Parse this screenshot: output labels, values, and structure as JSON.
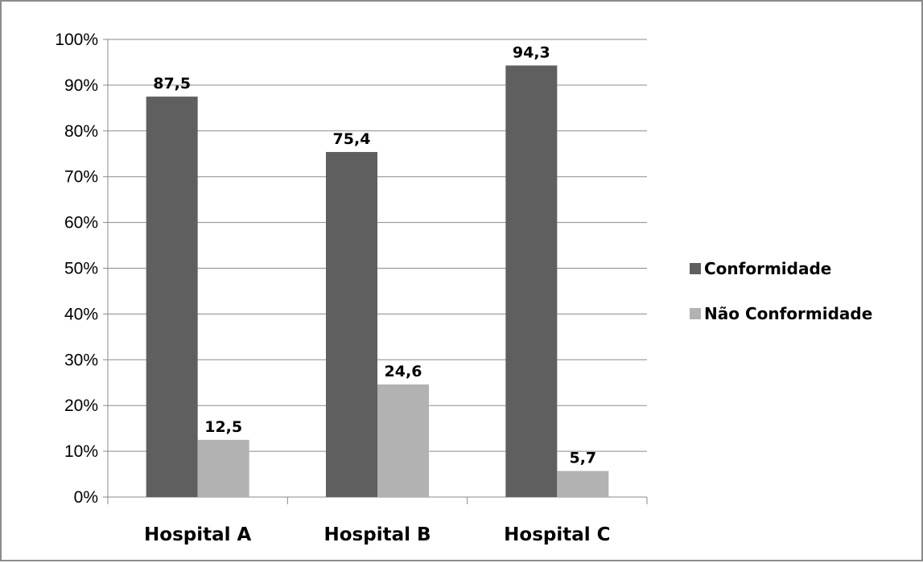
{
  "chart_data": {
    "type": "bar",
    "categories": [
      "Hospital A",
      "Hospital B",
      "Hospital C"
    ],
    "series": [
      {
        "name": "Conformidade",
        "values": [
          87.5,
          75.4,
          94.3
        ],
        "labels": [
          "87,5",
          "75,4",
          "94,3"
        ],
        "color": "#5f5f5f"
      },
      {
        "name": "Não Conformidade",
        "values": [
          12.5,
          24.6,
          5.7
        ],
        "labels": [
          "12,5",
          "24,6",
          "5,7"
        ],
        "color": "#b2b2b2"
      }
    ],
    "y_ticks": [
      "0%",
      "10%",
      "20%",
      "30%",
      "40%",
      "50%",
      "60%",
      "70%",
      "80%",
      "90%",
      "100%"
    ],
    "ylim": [
      0,
      100
    ],
    "grid": true,
    "legend_position": "right",
    "title": "",
    "xlabel": "",
    "ylabel": ""
  }
}
